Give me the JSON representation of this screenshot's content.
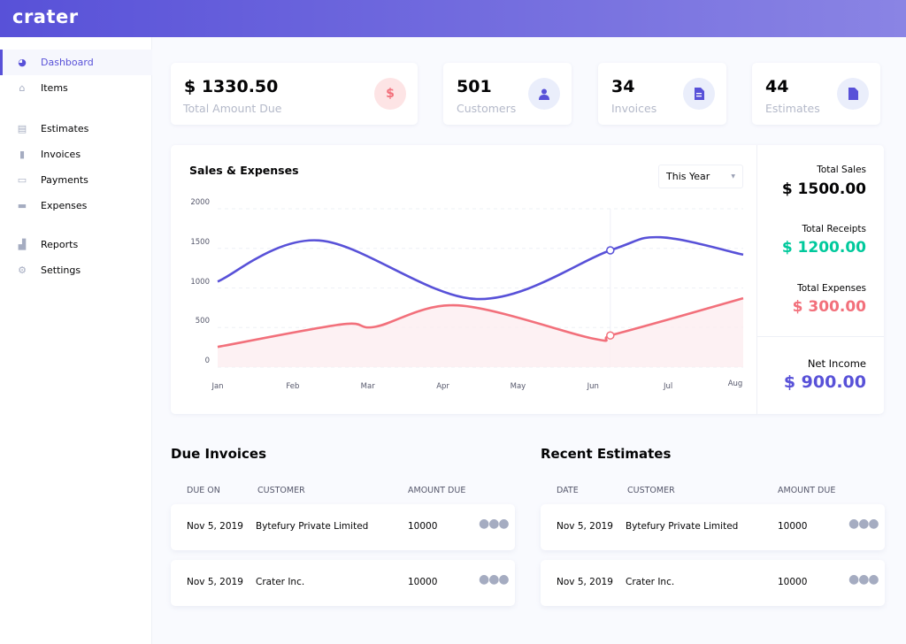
{
  "app": {
    "logo": "crater"
  },
  "sidebar": {
    "items": [
      {
        "label": "Dashboard",
        "icon": "dashboard-icon",
        "active": true
      },
      {
        "label": "Items",
        "icon": "basket-icon"
      },
      {
        "label": "Estimates",
        "icon": "document-icon"
      },
      {
        "label": "Invoices",
        "icon": "file-icon"
      },
      {
        "label": "Payments",
        "icon": "credit-card-icon"
      },
      {
        "label": "Expenses",
        "icon": "money-icon"
      },
      {
        "label": "Reports",
        "icon": "chart-icon"
      },
      {
        "label": "Settings",
        "icon": "gear-icon"
      }
    ]
  },
  "stats": [
    {
      "value": "$ 1330.50",
      "label": "Total Amount Due",
      "icon": "$"
    },
    {
      "value": "501",
      "label": "Customers",
      "icon": "user-icon"
    },
    {
      "value": "34",
      "label": "Invoices",
      "icon": "invoice-icon"
    },
    {
      "value": "44",
      "label": "Estimates",
      "icon": "estimate-icon"
    }
  ],
  "chart_panel": {
    "title": "Sales & Expenses",
    "period": "This Year",
    "total_sales_label": "Total Sales",
    "total_sales": "$ 1500.00",
    "total_receipts_label": "Total Receipts",
    "total_receipts": "$ 1200.00",
    "total_expenses_label": "Total Expenses",
    "total_expenses": "$ 300.00",
    "net_income_label": "Net Income",
    "net_income": "$ 900.00"
  },
  "colors": {
    "accent": "#5851d8",
    "sales": "#5851d8",
    "expenses": "#f2707b",
    "receipts": "#00c99c"
  },
  "chart_data": {
    "type": "line",
    "title": "Sales & Expenses",
    "categories": [
      "Jan",
      "Feb",
      "Mar",
      "Apr",
      "May",
      "Jun",
      "Jul",
      "Aug"
    ],
    "yticks": [
      "2000",
      "1500",
      "1000",
      "500",
      "0"
    ],
    "ylim": [
      0,
      2000
    ],
    "series": [
      {
        "name": "Sales",
        "x": [
          0,
          1.35,
          3.45,
          5.23,
          5.9,
          7
        ],
        "values": [
          1080,
          1600,
          860,
          1475,
          1640,
          1420
        ]
      },
      {
        "name": "Expenses",
        "x": [
          0,
          1.65,
          2.1,
          3.2,
          5.0,
          5.23,
          6.0,
          7
        ],
        "values": [
          255,
          540,
          510,
          780,
          360,
          400,
          600,
          870
        ],
        "fill": true
      }
    ],
    "hover_x": 5.23
  },
  "due_invoices": {
    "title": "Due Invoices",
    "headers": [
      "DUE ON",
      "CUSTOMER",
      "AMOUNT DUE"
    ],
    "rows": [
      {
        "date": "Nov 5, 2019",
        "customer": "Bytefury Private Limited",
        "amount": "10000"
      },
      {
        "date": "Nov 5, 2019",
        "customer": "Crater Inc.",
        "amount": "10000"
      }
    ]
  },
  "recent_estimates": {
    "title": "Recent Estimates",
    "headers": [
      "DATE",
      "CUSTOMER",
      "AMOUNT DUE"
    ],
    "rows": [
      {
        "date": "Nov 5, 2019",
        "customer": "Bytefury Private Limited",
        "amount": "10000"
      },
      {
        "date": "Nov 5, 2019",
        "customer": "Crater Inc.",
        "amount": "10000"
      }
    ]
  }
}
